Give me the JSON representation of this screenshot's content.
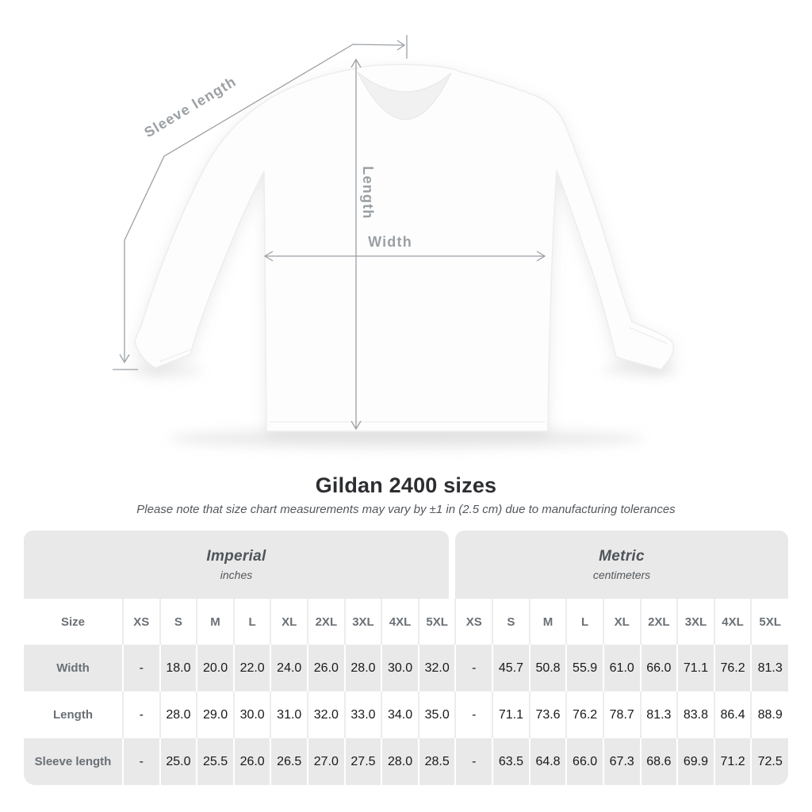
{
  "diagram": {
    "subject": "white long-sleeve t-shirt with measurement arrows",
    "labels": {
      "sleeve_length": "Sleeve length",
      "length": "Length",
      "width": "Width"
    }
  },
  "chart_data": {
    "type": "table",
    "title": "Gildan 2400 sizes",
    "note": "Please note that size chart measurements may vary by ±1 in (2.5 cm) due to manufacturing tolerances",
    "size_column_header": "Size",
    "unit_groups": [
      {
        "label": "Imperial",
        "unit": "inches"
      },
      {
        "label": "Metric",
        "unit": "centimeters"
      }
    ],
    "sizes": [
      "XS",
      "S",
      "M",
      "L",
      "XL",
      "2XL",
      "3XL",
      "4XL",
      "5XL"
    ],
    "rows": [
      {
        "label": "Width",
        "imperial": [
          "-",
          "18.0",
          "20.0",
          "22.0",
          "24.0",
          "26.0",
          "28.0",
          "30.0",
          "32.0"
        ],
        "metric": [
          "-",
          "45.7",
          "50.8",
          "55.9",
          "61.0",
          "66.0",
          "71.1",
          "76.2",
          "81.3"
        ]
      },
      {
        "label": "Length",
        "imperial": [
          "-",
          "28.0",
          "29.0",
          "30.0",
          "31.0",
          "32.0",
          "33.0",
          "34.0",
          "35.0"
        ],
        "metric": [
          "-",
          "71.1",
          "73.6",
          "76.2",
          "78.7",
          "81.3",
          "83.8",
          "86.4",
          "88.9"
        ]
      },
      {
        "label": "Sleeve length",
        "imperial": [
          "-",
          "25.0",
          "25.5",
          "26.0",
          "26.5",
          "27.0",
          "27.5",
          "28.0",
          "28.5"
        ],
        "metric": [
          "-",
          "63.5",
          "64.8",
          "66.0",
          "67.3",
          "68.6",
          "69.9",
          "71.2",
          "72.5"
        ]
      }
    ]
  },
  "colors": {
    "band_bg": "#e9e9e9",
    "alt_row_bg": "#e9e9e9",
    "muted_header_text": "#6a7076",
    "value_text": "#17191b",
    "measure_line": "#9aa0a5",
    "title_text": "#2c2e31",
    "shirt_fill": "#fdfdfd",
    "shirt_outline": "#ededed"
  }
}
